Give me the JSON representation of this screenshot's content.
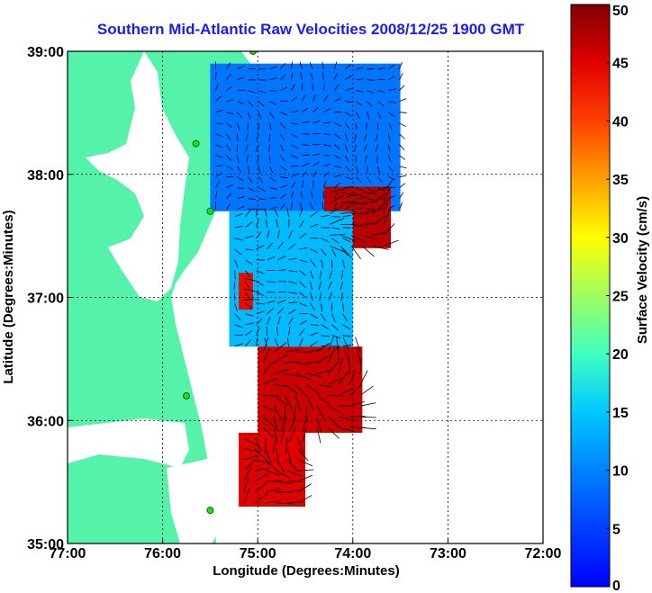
{
  "chart_data": {
    "type": "heatmap",
    "title": "Southern Mid-Atlantic Raw Velocities 2008/12/25 1900 GMT",
    "xlabel": "Longitude (Degrees:Minutes)",
    "ylabel": "Latitude (Degrees:Minutes)",
    "colorbar_label": "Surface Velocity (cm/s)",
    "x_ticks": [
      "77:00",
      "76:00",
      "75:00",
      "74:00",
      "73:00",
      "72:00"
    ],
    "y_ticks": [
      "39:00",
      "38:00",
      "37:00",
      "36:00",
      "35:00"
    ],
    "colorbar_ticks": [
      "50",
      "45",
      "40",
      "35",
      "30",
      "25",
      "20",
      "15",
      "10",
      "5",
      "0"
    ],
    "xlim": [
      -77,
      -72
    ],
    "ylim": [
      35,
      39
    ],
    "clim": [
      0,
      50
    ],
    "grid": true,
    "colors": {
      "land": "#55f2aa",
      "water": "#ffffff",
      "title": "#1a1aff",
      "grid": "#000000"
    },
    "regions": [
      {
        "name": "upper-blob",
        "speed": 9,
        "lon": [
          -75.5,
          -73.5
        ],
        "lat": [
          37.7,
          38.9
        ]
      },
      {
        "name": "upper-red-edge",
        "speed": 47,
        "lon": [
          -74.3,
          -73.6
        ],
        "lat": [
          37.4,
          37.9
        ]
      },
      {
        "name": "middle-blob",
        "speed": 14,
        "lon": [
          -75.3,
          -74.0
        ],
        "lat": [
          36.6,
          37.7
        ]
      },
      {
        "name": "middle-left-red",
        "speed": 44,
        "lon": [
          -75.2,
          -75.05
        ],
        "lat": [
          36.9,
          37.2
        ]
      },
      {
        "name": "lower-red-core",
        "speed": 46,
        "lon": [
          -75.0,
          -73.9
        ],
        "lat": [
          35.9,
          36.6
        ]
      },
      {
        "name": "bottom-red-tip",
        "speed": 45,
        "lon": [
          -75.2,
          -74.5
        ],
        "lat": [
          35.3,
          35.9
        ]
      }
    ],
    "stations": [
      {
        "lon": -75.05,
        "lat": 39.0
      },
      {
        "lon": -75.65,
        "lat": 38.25
      },
      {
        "lon": -75.5,
        "lat": 37.7
      },
      {
        "lon": -75.75,
        "lat": 36.2
      },
      {
        "lon": -75.5,
        "lat": 35.27
      }
    ]
  }
}
